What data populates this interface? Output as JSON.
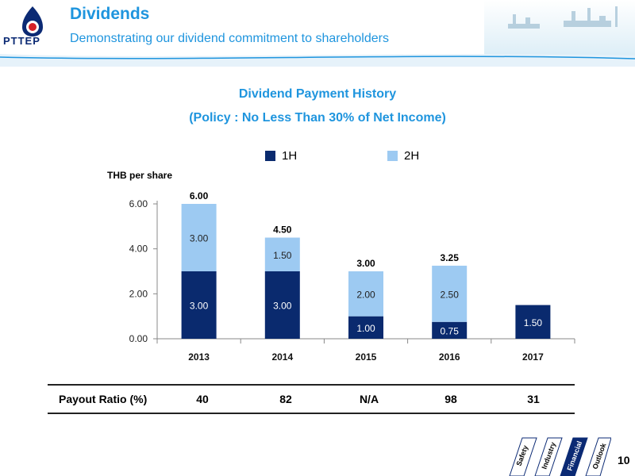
{
  "header": {
    "title": "Dividends",
    "subtitle": "Demonstrating our dividend commitment to shareholders",
    "logo_text": "PTTEP"
  },
  "chart_titles": {
    "line1": "Dividend Payment History",
    "line2": "(Policy : No Less Than 30% of Net Income)"
  },
  "legend": [
    {
      "label": "1H",
      "color": "#0a2a6e"
    },
    {
      "label": "2H",
      "color": "#9dcaf2"
    }
  ],
  "colors": {
    "accent": "#1f95de",
    "series_1h": "#0a2a6e",
    "series_2h": "#9dcaf2"
  },
  "chart_data": {
    "type": "bar",
    "stacked": true,
    "ylabel": "THB per share",
    "categories": [
      "2013",
      "2014",
      "2015",
      "2016",
      "2017"
    ],
    "series": [
      {
        "name": "1H",
        "values": [
          3.0,
          3.0,
          1.0,
          0.75,
          1.5
        ],
        "labels": [
          "3.00",
          "3.00",
          "1.00",
          "0.75",
          "1.50"
        ]
      },
      {
        "name": "2H",
        "values": [
          3.0,
          1.5,
          2.0,
          2.5,
          0
        ],
        "labels": [
          "3.00",
          "1.50",
          "2.00",
          "2.50",
          ""
        ]
      }
    ],
    "totals": [
      "6.00",
      "4.50",
      "3.00",
      "3.25",
      ""
    ],
    "ylim": [
      0,
      6
    ],
    "yticks": [
      "0.00",
      "2.00",
      "4.00",
      "6.00"
    ],
    "grid": false,
    "legend_position": "top"
  },
  "payout": {
    "label": "Payout Ratio (%)",
    "values": [
      "40",
      "82",
      "N/A",
      "98",
      "31"
    ]
  },
  "nav": {
    "items": [
      "Safety",
      "Industry",
      "Financial",
      "Outlook"
    ],
    "active": "Financial"
  },
  "page_number": "10"
}
